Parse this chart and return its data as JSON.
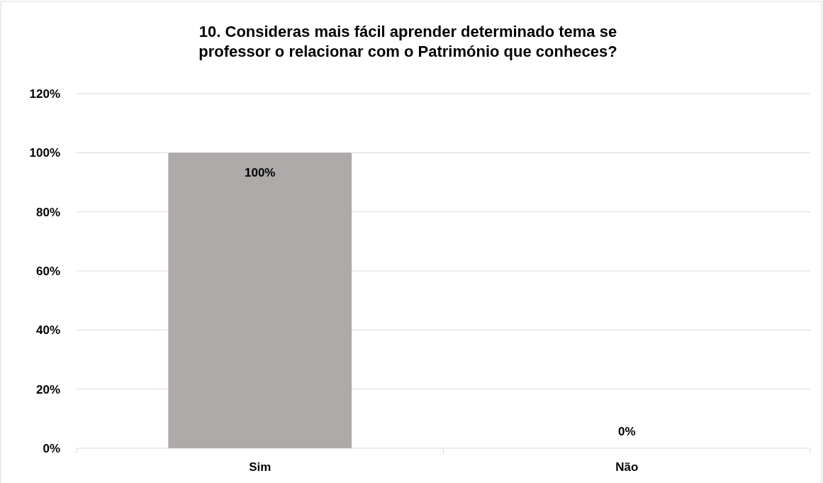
{
  "chart_data": {
    "type": "bar",
    "title": "10. Consideras mais fácil aprender determinado tema se professor o relacionar com o Património que conheces?",
    "categories": [
      "Sim",
      "Não"
    ],
    "values": [
      100,
      0
    ],
    "value_labels": [
      "100%",
      "0%"
    ],
    "color": "#aeaaaa",
    "ylim": [
      0,
      120
    ],
    "yticks": [
      {
        "value": 0,
        "label": "0%"
      },
      {
        "value": 20,
        "label": "20%"
      },
      {
        "value": 40,
        "label": "40%"
      },
      {
        "value": 60,
        "label": "60%"
      },
      {
        "value": 80,
        "label": "80%"
      },
      {
        "value": 100,
        "label": "100%"
      },
      {
        "value": 120,
        "label": "120%"
      }
    ],
    "grid": "y"
  }
}
